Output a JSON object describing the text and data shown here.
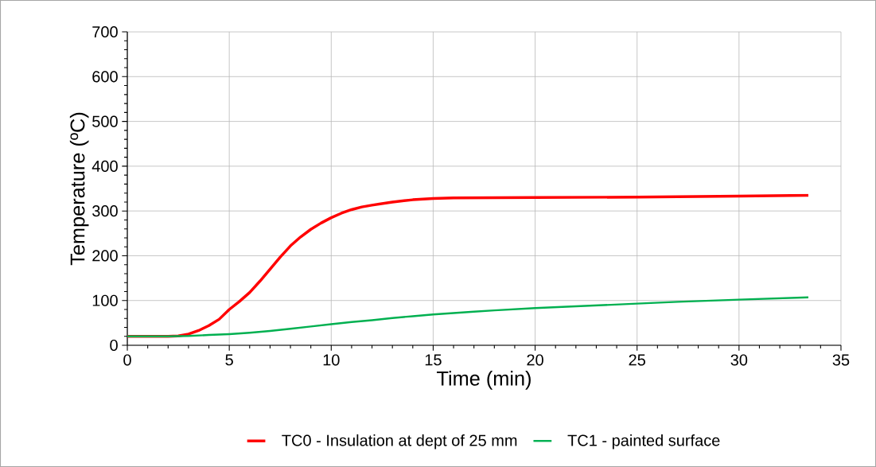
{
  "chart_data": {
    "type": "line",
    "xlabel": "Time (min)",
    "ylabel": "Temperature (ºC)",
    "xlim": [
      0,
      35
    ],
    "xticks": [
      0,
      5,
      10,
      15,
      20,
      25,
      30,
      35
    ],
    "ylim": [
      0,
      700
    ],
    "yticks": [
      0,
      100,
      200,
      300,
      400,
      500,
      600,
      700
    ],
    "grid": true,
    "legend": "bottom",
    "marker": "none",
    "line_style": "solid",
    "series": [
      {
        "name": "TC0 - Insulation at dept of 25 mm",
        "color": "#ff0000",
        "x": [
          0,
          2,
          2.5,
          3,
          3.5,
          4,
          4.5,
          5,
          5.5,
          6,
          6.5,
          7,
          7.5,
          8,
          8.5,
          9,
          9.5,
          10,
          10.5,
          11,
          11.5,
          12,
          13,
          14,
          15,
          16,
          20,
          25,
          30,
          33.4
        ],
        "values": [
          20,
          20,
          21,
          25,
          33,
          44,
          58,
          80,
          98,
          118,
          143,
          170,
          197,
          222,
          242,
          259,
          273,
          285,
          295,
          303,
          309,
          313,
          320,
          325,
          328,
          329,
          330,
          331,
          333,
          335
        ]
      },
      {
        "name": "TC1 - painted surface",
        "color": "#00b050",
        "x": [
          0,
          2,
          3,
          4,
          5,
          6,
          7,
          8,
          9,
          10,
          11,
          12,
          13,
          14,
          15,
          16,
          17,
          18,
          20,
          22,
          25,
          27,
          30,
          33.4
        ],
        "values": [
          20,
          20,
          21,
          23,
          25,
          28,
          32,
          37,
          42,
          47,
          52,
          56,
          61,
          65,
          69,
          72,
          75,
          78,
          83,
          87,
          93,
          97,
          102,
          107
        ]
      }
    ]
  }
}
